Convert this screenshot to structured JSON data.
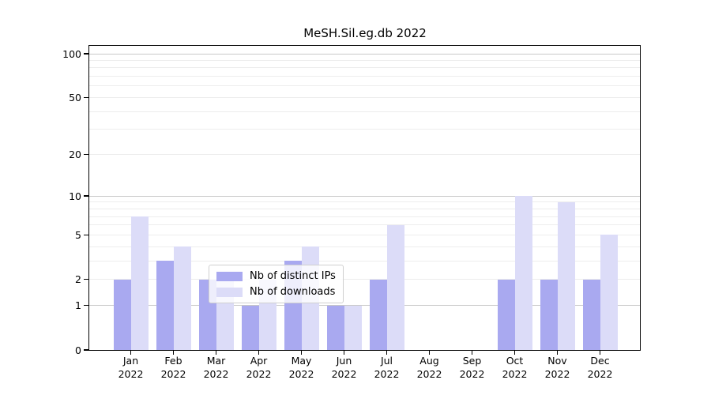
{
  "chart_data": {
    "type": "bar",
    "title": "MeSH.Sil.eg.db 2022",
    "categories": [
      "Jan",
      "Feb",
      "Mar",
      "Apr",
      "May",
      "Jun",
      "Jul",
      "Aug",
      "Sep",
      "Oct",
      "Nov",
      "Dec"
    ],
    "category_year": "2022",
    "series": [
      {
        "name": "Nb of distinct IPs",
        "color": "#a9a9f0",
        "values": [
          2,
          3,
          2,
          1,
          3,
          1,
          2,
          0,
          0,
          2,
          2,
          2
        ]
      },
      {
        "name": "Nb of downloads",
        "color": "#dcdcf8",
        "values": [
          7,
          4,
          2,
          2,
          4,
          1,
          6,
          0,
          0,
          10,
          9,
          5
        ]
      }
    ],
    "y_axis": {
      "scale": "log1p",
      "ticks": [
        0,
        1,
        2,
        5,
        10,
        20,
        50,
        100
      ],
      "major_gridlines": [
        1,
        10,
        100
      ],
      "minor_gridlines": [
        2,
        3,
        4,
        5,
        6,
        7,
        8,
        9,
        20,
        30,
        40,
        50,
        60,
        70,
        80,
        90
      ],
      "range_max": 113
    },
    "legend_position": "lower center",
    "colors": {
      "axis": "#000000",
      "grid_minor": "#ededed",
      "grid_major": "#c9c9c9",
      "background": "#ffffff"
    }
  }
}
